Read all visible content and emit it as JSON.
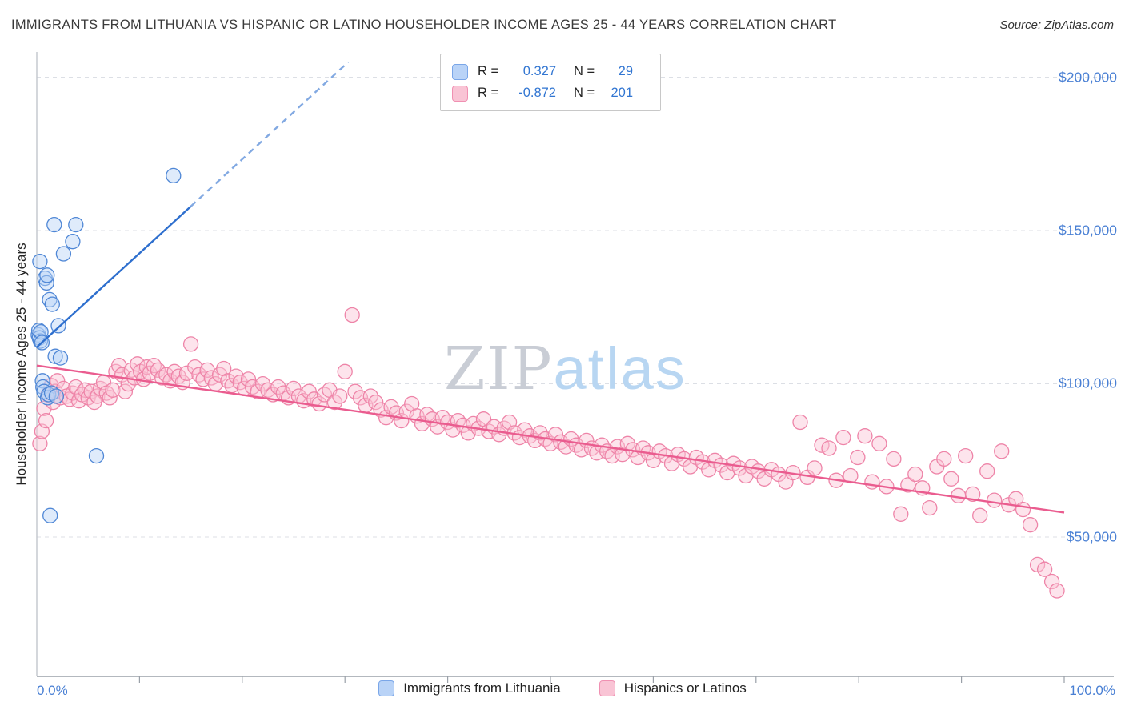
{
  "header": {
    "title": "IMMIGRANTS FROM LITHUANIA VS HISPANIC OR LATINO HOUSEHOLDER INCOME AGES 25 - 44 YEARS CORRELATION CHART",
    "source": "Source: ZipAtlas.com"
  },
  "legend_box": {
    "rows": [
      {
        "r_label": "R =",
        "r_value": "0.327",
        "n_label": "N =",
        "n_value": "29"
      },
      {
        "r_label": "R =",
        "r_value": "-0.872",
        "n_label": "N =",
        "n_value": "201"
      }
    ]
  },
  "watermark": {
    "zip": "ZIP",
    "atlas": "atlas"
  },
  "axes": {
    "y_axis_label": "Householder Income Ages 25 - 44 years",
    "y_tick_labels": [
      "$200,000",
      "$150,000",
      "$100,000",
      "$50,000"
    ],
    "x_tick_labels": [
      "0.0%",
      "100.0%"
    ]
  },
  "bottom_legend": {
    "items": [
      {
        "label": "Immigrants from Lithuania"
      },
      {
        "label": "Hispanics or Latinos"
      }
    ]
  },
  "colors": {
    "accent_blue": "#3276d2",
    "tick_label_blue": "#4a80d4",
    "blue_point_fill": "#b9d3f7",
    "blue_point_stroke": "#4f87d6",
    "blue_trend": "#2e6fce",
    "pink_point_fill": "#fac3d5",
    "pink_point_stroke": "#ee84a8",
    "pink_trend": "#ea5c8f"
  },
  "chart_data": {
    "type": "scatter",
    "title": "Immigrants from Lithuania vs Hispanic or Latino Householder Income Ages 25 - 44 years",
    "ylabel": "Householder Income Ages 25 - 44 years",
    "xlim": [
      0,
      100
    ],
    "ylim": [
      25000,
      208000
    ],
    "y_ticks": [
      200000,
      150000,
      100000,
      50000
    ],
    "x_unit": "%",
    "grid": "horizontal-dashed",
    "legend_position": "top-center",
    "series": [
      {
        "name": "Immigrants from Lithuania",
        "R": 0.327,
        "N": 29,
        "dom": "blue-points",
        "fill": "#b9d3f7",
        "stroke": "#4f87d6",
        "trend_color": "#2e6fce",
        "point_name": "lithuania-data-point",
        "trend_name": "lithuania-trend-line",
        "points": [
          [
            0.15,
            116000
          ],
          [
            0.2,
            117500
          ],
          [
            0.25,
            115000
          ],
          [
            0.3,
            140000
          ],
          [
            0.35,
            114000
          ],
          [
            0.4,
            117000
          ],
          [
            0.5,
            113500
          ],
          [
            0.55,
            101000
          ],
          [
            0.6,
            99000
          ],
          [
            0.7,
            97500
          ],
          [
            0.8,
            134500
          ],
          [
            0.95,
            133000
          ],
          [
            1.0,
            135500
          ],
          [
            1.05,
            95500
          ],
          [
            1.15,
            96500
          ],
          [
            1.25,
            127500
          ],
          [
            1.3,
            57000
          ],
          [
            1.45,
            97000
          ],
          [
            1.5,
            126000
          ],
          [
            1.7,
            152000
          ],
          [
            1.8,
            109000
          ],
          [
            1.9,
            96000
          ],
          [
            2.1,
            119000
          ],
          [
            2.3,
            108500
          ],
          [
            2.6,
            142500
          ],
          [
            3.5,
            146500
          ],
          [
            3.8,
            152000
          ],
          [
            5.8,
            76500
          ],
          [
            13.3,
            168000
          ]
        ],
        "trend": [
          {
            "style": "solid",
            "from": [
              0,
              112000
            ],
            "to": [
              15,
              158000
            ]
          },
          {
            "style": "dashed",
            "from": [
              15,
              158000
            ],
            "to": [
              30.3,
              205000
            ]
          }
        ]
      },
      {
        "name": "Hispanics or Latinos",
        "R": -0.872,
        "N": 201,
        "dom": "pink-points",
        "fill": "#fac3d5",
        "stroke": "#ee84a8",
        "trend_color": "#ea5c8f",
        "point_name": "hispanic-data-point",
        "trend_name": "hispanic-trend-line",
        "points": [
          [
            0.3,
            80500
          ],
          [
            0.5,
            84500
          ],
          [
            0.7,
            92000
          ],
          [
            0.9,
            88000
          ],
          [
            1.1,
            96500
          ],
          [
            1.4,
            99500
          ],
          [
            1.6,
            94000
          ],
          [
            1.8,
            97500
          ],
          [
            2.0,
            101000
          ],
          [
            2.3,
            95500
          ],
          [
            2.6,
            98500
          ],
          [
            2.9,
            96000
          ],
          [
            3.2,
            95000
          ],
          [
            3.5,
            97000
          ],
          [
            3.8,
            99000
          ],
          [
            4.1,
            94500
          ],
          [
            4.4,
            96500
          ],
          [
            4.7,
            98000
          ],
          [
            5.0,
            95500
          ],
          [
            5.3,
            97500
          ],
          [
            5.6,
            94000
          ],
          [
            5.9,
            96000
          ],
          [
            6.2,
            98500
          ],
          [
            6.5,
            100500
          ],
          [
            6.8,
            97000
          ],
          [
            7.1,
            95500
          ],
          [
            7.4,
            98000
          ],
          [
            7.7,
            104000
          ],
          [
            8.0,
            106000
          ],
          [
            8.3,
            103000
          ],
          [
            8.6,
            97500
          ],
          [
            8.9,
            100000
          ],
          [
            9.2,
            104500
          ],
          [
            9.5,
            102000
          ],
          [
            9.8,
            106500
          ],
          [
            10.1,
            104000
          ],
          [
            10.4,
            101500
          ],
          [
            10.7,
            105500
          ],
          [
            11.0,
            103500
          ],
          [
            11.4,
            106000
          ],
          [
            11.8,
            104500
          ],
          [
            12.2,
            102000
          ],
          [
            12.6,
            103000
          ],
          [
            13.0,
            101000
          ],
          [
            13.4,
            104000
          ],
          [
            13.8,
            102500
          ],
          [
            14.2,
            100500
          ],
          [
            14.6,
            103500
          ],
          [
            15.0,
            113000
          ],
          [
            15.4,
            105500
          ],
          [
            15.8,
            103000
          ],
          [
            16.2,
            101500
          ],
          [
            16.6,
            104500
          ],
          [
            17.0,
            102000
          ],
          [
            17.4,
            100000
          ],
          [
            17.8,
            103000
          ],
          [
            18.2,
            105000
          ],
          [
            18.6,
            101000
          ],
          [
            19.0,
            99500
          ],
          [
            19.4,
            102500
          ],
          [
            19.8,
            100500
          ],
          [
            20.2,
            98500
          ],
          [
            20.6,
            101500
          ],
          [
            21.0,
            99000
          ],
          [
            21.5,
            97500
          ],
          [
            22.0,
            100000
          ],
          [
            22.5,
            98000
          ],
          [
            23.0,
            96500
          ],
          [
            23.5,
            99000
          ],
          [
            24.0,
            97000
          ],
          [
            24.5,
            95500
          ],
          [
            25.0,
            98500
          ],
          [
            25.5,
            96000
          ],
          [
            26.0,
            94500
          ],
          [
            26.5,
            97500
          ],
          [
            27.0,
            95000
          ],
          [
            27.5,
            93500
          ],
          [
            28.0,
            96500
          ],
          [
            28.5,
            98000
          ],
          [
            29.0,
            94000
          ],
          [
            29.5,
            96000
          ],
          [
            30.0,
            104000
          ],
          [
            30.7,
            122500
          ],
          [
            31.0,
            97500
          ],
          [
            31.5,
            95500
          ],
          [
            32.0,
            93000
          ],
          [
            32.5,
            96000
          ],
          [
            33.0,
            94000
          ],
          [
            33.5,
            91500
          ],
          [
            34.0,
            89000
          ],
          [
            34.5,
            92500
          ],
          [
            35.0,
            90500
          ],
          [
            35.5,
            88000
          ],
          [
            36.0,
            91000
          ],
          [
            36.5,
            93500
          ],
          [
            37.0,
            89500
          ],
          [
            37.5,
            87000
          ],
          [
            38.0,
            90000
          ],
          [
            38.5,
            88500
          ],
          [
            39.0,
            86000
          ],
          [
            39.5,
            89000
          ],
          [
            40.0,
            87500
          ],
          [
            40.5,
            85000
          ],
          [
            41.0,
            88000
          ],
          [
            41.5,
            86500
          ],
          [
            42.0,
            84000
          ],
          [
            42.5,
            87000
          ],
          [
            43.0,
            85500
          ],
          [
            43.5,
            88500
          ],
          [
            44.0,
            84500
          ],
          [
            44.5,
            86000
          ],
          [
            45.0,
            83500
          ],
          [
            45.5,
            85500
          ],
          [
            46.0,
            87500
          ],
          [
            46.5,
            84000
          ],
          [
            47.0,
            82500
          ],
          [
            47.5,
            85000
          ],
          [
            48.0,
            83000
          ],
          [
            48.5,
            81500
          ],
          [
            49.0,
            84000
          ],
          [
            49.5,
            82000
          ],
          [
            50.0,
            80500
          ],
          [
            50.5,
            83500
          ],
          [
            51.0,
            81000
          ],
          [
            51.5,
            79500
          ],
          [
            52.0,
            82000
          ],
          [
            52.5,
            80000
          ],
          [
            53.0,
            78500
          ],
          [
            53.5,
            81500
          ],
          [
            54.0,
            79000
          ],
          [
            54.5,
            77500
          ],
          [
            55.0,
            80000
          ],
          [
            55.5,
            78000
          ],
          [
            56.0,
            76500
          ],
          [
            56.5,
            79500
          ],
          [
            57.0,
            77000
          ],
          [
            57.5,
            80500
          ],
          [
            58.0,
            78500
          ],
          [
            58.5,
            76000
          ],
          [
            59.0,
            79000
          ],
          [
            59.5,
            77500
          ],
          [
            60.0,
            75000
          ],
          [
            60.6,
            78000
          ],
          [
            61.2,
            76500
          ],
          [
            61.8,
            74000
          ],
          [
            62.4,
            77000
          ],
          [
            63.0,
            75500
          ],
          [
            63.6,
            73000
          ],
          [
            64.2,
            76000
          ],
          [
            64.8,
            74500
          ],
          [
            65.4,
            72000
          ],
          [
            66.0,
            75000
          ],
          [
            66.6,
            73500
          ],
          [
            67.2,
            71000
          ],
          [
            67.8,
            74000
          ],
          [
            68.4,
            72500
          ],
          [
            69.0,
            70000
          ],
          [
            69.6,
            73000
          ],
          [
            70.2,
            71500
          ],
          [
            70.8,
            69000
          ],
          [
            71.5,
            72000
          ],
          [
            72.2,
            70500
          ],
          [
            72.9,
            68000
          ],
          [
            73.6,
            71000
          ],
          [
            74.3,
            87500
          ],
          [
            75.0,
            69500
          ],
          [
            75.7,
            72500
          ],
          [
            76.4,
            80000
          ],
          [
            77.1,
            79000
          ],
          [
            77.8,
            68500
          ],
          [
            78.5,
            82500
          ],
          [
            79.2,
            70000
          ],
          [
            79.9,
            76000
          ],
          [
            80.6,
            83000
          ],
          [
            81.3,
            68000
          ],
          [
            82.0,
            80500
          ],
          [
            82.7,
            66500
          ],
          [
            83.4,
            75500
          ],
          [
            84.1,
            57500
          ],
          [
            84.8,
            67000
          ],
          [
            85.5,
            70500
          ],
          [
            86.2,
            66000
          ],
          [
            86.9,
            59500
          ],
          [
            87.6,
            73000
          ],
          [
            88.3,
            75500
          ],
          [
            89.0,
            69000
          ],
          [
            89.7,
            63500
          ],
          [
            90.4,
            76500
          ],
          [
            91.1,
            64000
          ],
          [
            91.8,
            57000
          ],
          [
            92.5,
            71500
          ],
          [
            93.2,
            62000
          ],
          [
            93.9,
            78000
          ],
          [
            94.6,
            60500
          ],
          [
            95.3,
            62500
          ],
          [
            96.0,
            59000
          ],
          [
            96.7,
            54000
          ],
          [
            97.4,
            41000
          ],
          [
            98.1,
            39500
          ],
          [
            98.8,
            35500
          ],
          [
            99.3,
            32500
          ]
        ],
        "trend": [
          {
            "style": "solid",
            "from": [
              0,
              106000
            ],
            "to": [
              100,
              58000
            ]
          }
        ]
      }
    ]
  }
}
